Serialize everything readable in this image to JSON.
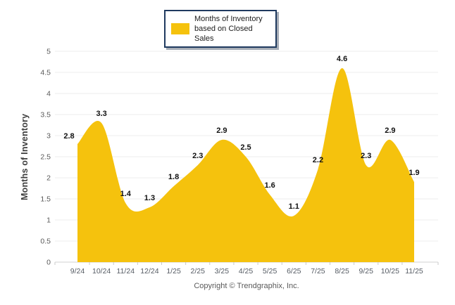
{
  "legend": {
    "label": "Months of Inventory based on Closed Sales",
    "swatch_color": "#F5C20D"
  },
  "chart_data": {
    "type": "area",
    "title": "",
    "series_name": "Months of Inventory based on Closed Sales",
    "categories": [
      "9/24",
      "10/24",
      "11/24",
      "12/24",
      "1/25",
      "2/25",
      "3/25",
      "4/25",
      "5/25",
      "6/25",
      "7/25",
      "8/25",
      "9/25",
      "10/25",
      "11/25"
    ],
    "values": [
      2.8,
      3.3,
      1.4,
      1.3,
      1.8,
      2.3,
      2.9,
      2.5,
      1.6,
      1.1,
      2.2,
      4.6,
      2.3,
      2.9,
      1.9
    ],
    "xlabel": "",
    "ylabel": "Months of Inventory",
    "ylim": [
      0,
      5
    ],
    "ytick_step": 0.5,
    "grid": "horizontal",
    "legend_position": "top-center",
    "area_color": "#F5C20D",
    "data_label_color": "#111111",
    "axis_label_color": "#595959"
  },
  "footer": {
    "copyright": "Copyright © Trendgraphix, Inc."
  }
}
